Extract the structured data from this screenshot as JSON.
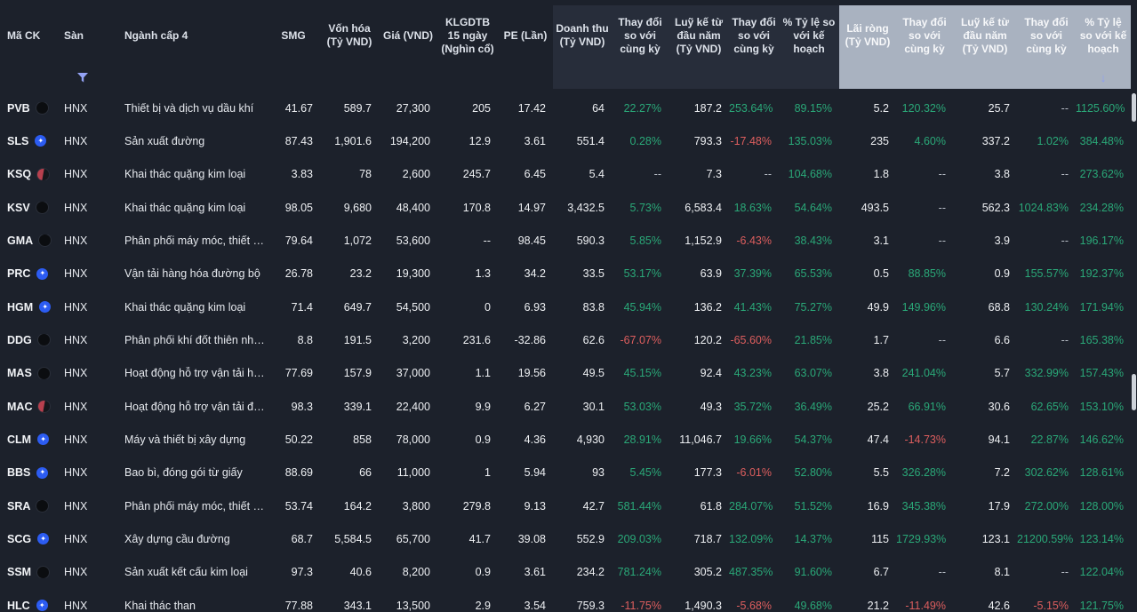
{
  "colors": {
    "background": "#1c212b",
    "revenue_group_bg": "#272d3a",
    "profit_group_bg": "#a9b2c0",
    "positive": "#2aa878",
    "negative": "#dd5e5e",
    "accent_icon": "#8b9cf6"
  },
  "table": {
    "header": {
      "ma_ck": "Mã CK",
      "san": "Sàn",
      "nganh": "Ngành cấp 4",
      "smg": "SMG",
      "von_hoa": "Vốn hóa (Tỷ VND)",
      "gia": "Giá (VND)",
      "klgdtb": "KLGDTB 15 ngày (Nghìn cổ)",
      "pe": "PE (Lần)",
      "revenue_group": {
        "doanh_thu": "Doanh thu (Tỷ VND)",
        "thay_doi_1": "Thay đổi so với cùng kỳ",
        "luy_ke": "Luỹ kế từ đầu năm (Tỷ VND)",
        "thay_doi_2": "Thay đổi so với cùng kỳ",
        "ty_le": "% Tỷ lệ so với kế hoạch"
      },
      "profit_group": {
        "lai_rong": "Lãi ròng (Tỷ VND)",
        "thay_doi_1": "Thay đổi so với cùng kỳ",
        "luy_ke": "Luỹ kế từ đầu năm (Tỷ VND)",
        "thay_doi_2": "Thay đổi so với cùng kỳ",
        "ty_le": "% Tỷ lệ so với kế hoạch"
      },
      "sort_arrow": "↓"
    },
    "rows": [
      {
        "ticker": "PVB",
        "logo": "black",
        "exchange": "HNX",
        "industry": "Thiết bị và dịch vụ dầu khí",
        "cells": [
          "41.67",
          "589.7",
          "27,300",
          "205",
          "17.42",
          "64",
          "22.27%",
          "187.2",
          "253.64%",
          "89.15%",
          "5.2",
          "120.32%",
          "25.7",
          "--",
          "1125.60%"
        ]
      },
      {
        "ticker": "SLS",
        "logo": "blue",
        "exchange": "HNX",
        "industry": "Sản xuất đường",
        "cells": [
          "87.43",
          "1,901.6",
          "194,200",
          "12.9",
          "3.61",
          "551.4",
          "0.28%",
          "793.3",
          "-17.48%",
          "135.03%",
          "235",
          "4.60%",
          "337.2",
          "1.02%",
          "384.48%"
        ]
      },
      {
        "ticker": "KSQ",
        "logo": "red",
        "exchange": "HNX",
        "industry": "Khai thác quặng kim loại",
        "cells": [
          "3.83",
          "78",
          "2,600",
          "245.7",
          "6.45",
          "5.4",
          "--",
          "7.3",
          "--",
          "104.68%",
          "1.8",
          "--",
          "3.8",
          "--",
          "273.62%"
        ]
      },
      {
        "ticker": "KSV",
        "logo": "black",
        "exchange": "HNX",
        "industry": "Khai thác quặng kim loại",
        "cells": [
          "98.05",
          "9,680",
          "48,400",
          "170.8",
          "14.97",
          "3,432.5",
          "5.73%",
          "6,583.4",
          "18.63%",
          "54.64%",
          "493.5",
          "--",
          "562.3",
          "1024.83%",
          "234.28%"
        ]
      },
      {
        "ticker": "GMA",
        "logo": "black",
        "exchange": "HNX",
        "industry": "Phân phối máy móc, thiết bị v...",
        "cells": [
          "79.64",
          "1,072",
          "53,600",
          "--",
          "98.45",
          "590.3",
          "5.85%",
          "1,152.9",
          "-6.43%",
          "38.43%",
          "3.1",
          "--",
          "3.9",
          "--",
          "196.17%"
        ]
      },
      {
        "ticker": "PRC",
        "logo": "blue",
        "exchange": "HNX",
        "industry": "Vận tải hàng hóa đường bộ",
        "cells": [
          "26.78",
          "23.2",
          "19,300",
          "1.3",
          "34.2",
          "33.5",
          "53.17%",
          "63.9",
          "37.39%",
          "65.53%",
          "0.5",
          "88.85%",
          "0.9",
          "155.57%",
          "192.37%"
        ]
      },
      {
        "ticker": "HGM",
        "logo": "blue",
        "exchange": "HNX",
        "industry": "Khai thác quặng kim loại",
        "cells": [
          "71.4",
          "649.7",
          "54,500",
          "0",
          "6.93",
          "83.8",
          "45.94%",
          "136.2",
          "41.43%",
          "75.27%",
          "49.9",
          "149.96%",
          "68.8",
          "130.24%",
          "171.94%"
        ]
      },
      {
        "ticker": "DDG",
        "logo": "black",
        "exchange": "HNX",
        "industry": "Phân phối khí đốt thiên nhiên",
        "cells": [
          "8.8",
          "191.5",
          "3,200",
          "231.6",
          "-32.86",
          "62.6",
          "-67.07%",
          "120.2",
          "-65.60%",
          "21.85%",
          "1.7",
          "--",
          "6.6",
          "--",
          "165.38%"
        ]
      },
      {
        "ticker": "MAS",
        "logo": "black",
        "exchange": "HNX",
        "industry": "Hoạt động hỗ trợ vận tải hàng ...",
        "cells": [
          "77.69",
          "157.9",
          "37,000",
          "1.1",
          "19.56",
          "49.5",
          "45.15%",
          "92.4",
          "43.23%",
          "63.07%",
          "3.8",
          "241.04%",
          "5.7",
          "332.99%",
          "157.43%"
        ]
      },
      {
        "ticker": "MAC",
        "logo": "red",
        "exchange": "HNX",
        "industry": "Hoạt động hỗ trợ vận tải đườn...",
        "cells": [
          "98.3",
          "339.1",
          "22,400",
          "9.9",
          "6.27",
          "30.1",
          "53.03%",
          "49.3",
          "35.72%",
          "36.49%",
          "25.2",
          "66.91%",
          "30.6",
          "62.65%",
          "153.10%"
        ]
      },
      {
        "ticker": "CLM",
        "logo": "blue",
        "exchange": "HNX",
        "industry": "Máy và thiết bị xây dựng",
        "cells": [
          "50.22",
          "858",
          "78,000",
          "0.9",
          "4.36",
          "4,930",
          "28.91%",
          "11,046.7",
          "19.66%",
          "54.37%",
          "47.4",
          "-14.73%",
          "94.1",
          "22.87%",
          "146.62%"
        ]
      },
      {
        "ticker": "BBS",
        "logo": "blue",
        "exchange": "HNX",
        "industry": "Bao bì, đóng gói từ giấy",
        "cells": [
          "88.69",
          "66",
          "11,000",
          "1",
          "5.94",
          "93",
          "5.45%",
          "177.3",
          "-6.01%",
          "52.80%",
          "5.5",
          "326.28%",
          "7.2",
          "302.62%",
          "128.61%"
        ]
      },
      {
        "ticker": "SRA",
        "logo": "black",
        "exchange": "HNX",
        "industry": "Phân phối máy móc, thiết bị v...",
        "cells": [
          "53.74",
          "164.2",
          "3,800",
          "279.8",
          "9.13",
          "42.7",
          "581.44%",
          "61.8",
          "284.07%",
          "51.52%",
          "16.9",
          "345.38%",
          "17.9",
          "272.00%",
          "128.00%"
        ]
      },
      {
        "ticker": "SCG",
        "logo": "blue",
        "exchange": "HNX",
        "industry": "Xây dựng cầu đường",
        "cells": [
          "68.7",
          "5,584.5",
          "65,700",
          "41.7",
          "39.08",
          "552.9",
          "209.03%",
          "718.7",
          "132.09%",
          "14.37%",
          "115",
          "1729.93%",
          "123.1",
          "21200.59%",
          "123.14%"
        ]
      },
      {
        "ticker": "SSM",
        "logo": "black",
        "exchange": "HNX",
        "industry": "Sản xuất kết cấu kim loại",
        "cells": [
          "97.3",
          "40.6",
          "8,200",
          "0.9",
          "3.61",
          "234.2",
          "781.24%",
          "305.2",
          "487.35%",
          "91.60%",
          "6.7",
          "--",
          "8.1",
          "--",
          "122.04%"
        ]
      },
      {
        "ticker": "HLC",
        "logo": "blue",
        "exchange": "HNX",
        "industry": "Khai thác than",
        "cells": [
          "77.88",
          "343.1",
          "13,500",
          "2.9",
          "3.54",
          "759.3",
          "-11.75%",
          "1,490.3",
          "-5.68%",
          "49.68%",
          "21.2",
          "-11.49%",
          "42.6",
          "-5.15%",
          "121.75%"
        ]
      }
    ]
  }
}
